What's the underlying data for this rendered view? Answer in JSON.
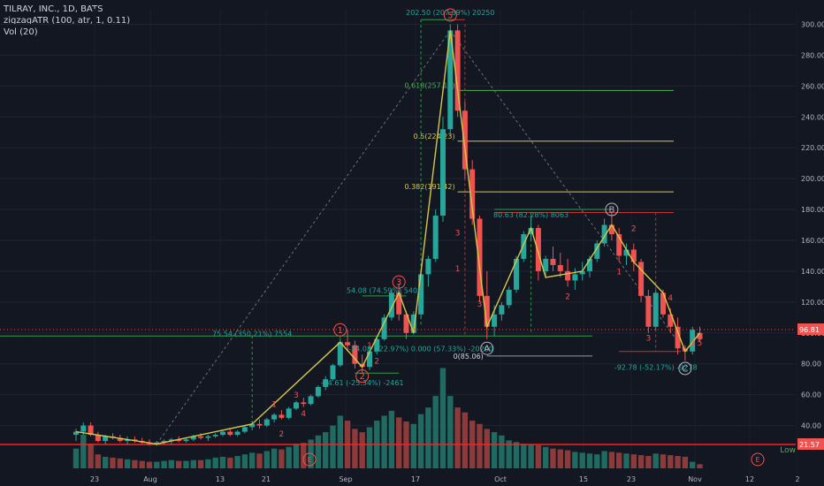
{
  "legend": {
    "symbol_line": "TILRAY, INC., 1D, BATS",
    "indicator_line": "zigzagATR (100, atr, 1, 0.11)",
    "volume_line": "Vol (20)"
  },
  "chart_data": {
    "type": "candlestick",
    "colors": {
      "up": "#26a69a",
      "down": "#ef5350",
      "zigzag": "#d4c84a",
      "fib": "#d4c84a",
      "fib_green": "#4caf50",
      "guide": "#26a69a",
      "red_line": "#ff1e1e",
      "bg": "#131722",
      "text": "#b2b5be"
    },
    "y_axis": {
      "min": 18,
      "max": 310,
      "ticks": [
        80,
        100,
        120,
        140,
        160,
        180,
        200,
        220,
        240,
        260,
        280,
        300
      ],
      "tick_labels": [
        "80.00",
        "100.00",
        "120.00",
        "140.00",
        "160.00",
        "180.00",
        "200.00",
        "220.00",
        "240.00",
        "260.00",
        "280.00",
        "300.00"
      ]
    },
    "lower_ticks": [
      40,
      60
    ],
    "lower_tick_labels": [
      "40.00",
      "60.00"
    ],
    "x_axis": {
      "labels": [
        "23",
        "Aug",
        "13",
        "21",
        "Sep",
        "17",
        "Oct",
        "15",
        "23",
        "Nov",
        "12",
        "2"
      ]
    },
    "candles": [
      [
        34,
        38,
        30,
        36
      ],
      [
        36,
        42,
        34,
        40
      ],
      [
        40,
        42,
        33,
        34
      ],
      [
        34,
        36,
        29,
        30
      ],
      [
        30,
        34,
        28,
        33
      ],
      [
        33,
        35,
        31,
        32
      ],
      [
        32,
        34,
        29,
        30
      ],
      [
        30,
        33,
        28,
        31
      ],
      [
        31,
        33,
        29,
        30
      ],
      [
        30,
        32,
        28,
        29
      ],
      [
        29,
        31,
        27,
        28
      ],
      [
        28,
        30,
        27,
        29
      ],
      [
        29,
        31,
        28,
        30
      ],
      [
        30,
        32,
        28,
        31
      ],
      [
        31,
        33,
        29,
        30
      ],
      [
        30,
        32,
        29,
        31
      ],
      [
        31,
        34,
        30,
        33
      ],
      [
        33,
        35,
        31,
        32
      ],
      [
        32,
        34,
        30,
        33
      ],
      [
        33,
        35,
        32,
        34
      ],
      [
        34,
        37,
        33,
        36
      ],
      [
        36,
        38,
        33,
        34
      ],
      [
        34,
        37,
        33,
        36
      ],
      [
        36,
        40,
        35,
        39
      ],
      [
        39,
        43,
        37,
        41
      ],
      [
        41,
        44,
        38,
        40
      ],
      [
        40,
        45,
        39,
        44
      ],
      [
        44,
        48,
        42,
        47
      ],
      [
        47,
        50,
        44,
        45
      ],
      [
        45,
        52,
        44,
        51
      ],
      [
        51,
        56,
        50,
        55
      ],
      [
        55,
        58,
        52,
        54
      ],
      [
        54,
        60,
        53,
        59
      ],
      [
        59,
        66,
        58,
        65
      ],
      [
        65,
        72,
        63,
        70
      ],
      [
        70,
        80,
        69,
        79
      ],
      [
        79,
        96,
        78,
        94
      ],
      [
        94,
        102,
        88,
        92
      ],
      [
        92,
        95,
        77,
        80
      ],
      [
        80,
        86,
        74,
        78
      ],
      [
        78,
        90,
        76,
        88
      ],
      [
        88,
        98,
        86,
        96
      ],
      [
        96,
        112,
        95,
        110
      ],
      [
        110,
        128,
        108,
        126
      ],
      [
        126,
        132,
        108,
        112
      ],
      [
        112,
        114,
        96,
        100
      ],
      [
        100,
        114,
        99,
        112
      ],
      [
        112,
        140,
        110,
        138
      ],
      [
        138,
        150,
        130,
        148
      ],
      [
        148,
        180,
        146,
        176
      ],
      [
        176,
        240,
        172,
        232
      ],
      [
        232,
        300,
        228,
        296
      ],
      [
        296,
        300,
        240,
        244
      ],
      [
        244,
        250,
        200,
        206
      ],
      [
        206,
        212,
        170,
        174
      ],
      [
        174,
        176,
        120,
        124
      ],
      [
        124,
        140,
        96,
        104
      ],
      [
        104,
        118,
        98,
        112
      ],
      [
        112,
        120,
        108,
        118
      ],
      [
        118,
        130,
        116,
        128
      ],
      [
        128,
        150,
        126,
        148
      ],
      [
        148,
        166,
        146,
        164
      ],
      [
        164,
        176,
        160,
        168
      ],
      [
        168,
        170,
        134,
        140
      ],
      [
        140,
        150,
        136,
        148
      ],
      [
        148,
        156,
        140,
        144
      ],
      [
        144,
        152,
        136,
        140
      ],
      [
        140,
        148,
        130,
        134
      ],
      [
        134,
        142,
        128,
        138
      ],
      [
        138,
        146,
        134,
        140
      ],
      [
        140,
        150,
        136,
        148
      ],
      [
        148,
        160,
        146,
        158
      ],
      [
        158,
        174,
        156,
        170
      ],
      [
        170,
        178,
        160,
        164
      ],
      [
        164,
        168,
        146,
        150
      ],
      [
        150,
        158,
        144,
        154
      ],
      [
        154,
        158,
        140,
        146
      ],
      [
        146,
        148,
        120,
        124
      ],
      [
        124,
        128,
        100,
        104
      ],
      [
        104,
        128,
        102,
        126
      ],
      [
        126,
        128,
        110,
        112
      ],
      [
        112,
        116,
        100,
        104
      ],
      [
        104,
        110,
        86,
        90
      ],
      [
        90,
        92,
        82,
        88
      ],
      [
        88,
        104,
        86,
        102
      ],
      [
        100,
        104,
        94,
        96
      ]
    ],
    "volumes": [
      24,
      41,
      30,
      17,
      14,
      13,
      12,
      11,
      10,
      9,
      8,
      8,
      9,
      10,
      9,
      9,
      10,
      10,
      11,
      13,
      14,
      13,
      15,
      17,
      19,
      18,
      21,
      24,
      23,
      26,
      30,
      31,
      35,
      40,
      44,
      52,
      64,
      58,
      48,
      44,
      50,
      58,
      64,
      70,
      62,
      57,
      54,
      66,
      74,
      88,
      122,
      88,
      74,
      68,
      58,
      54,
      48,
      44,
      40,
      34,
      32,
      30,
      29,
      28,
      26,
      24,
      23,
      22,
      20,
      19,
      18,
      17,
      21,
      20,
      19,
      18,
      17,
      16,
      15,
      18,
      17,
      16,
      15,
      14,
      8,
      5
    ],
    "zigzag": [
      [
        0,
        36
      ],
      [
        11,
        28
      ],
      [
        24,
        41
      ],
      [
        36,
        94
      ],
      [
        39,
        78
      ],
      [
        44,
        126
      ],
      [
        46,
        100
      ],
      [
        51,
        296
      ],
      [
        56,
        104
      ],
      [
        62,
        168
      ],
      [
        64,
        136
      ],
      [
        69,
        140
      ],
      [
        73,
        170
      ],
      [
        76,
        146
      ],
      [
        80,
        126
      ],
      [
        83,
        88
      ],
      [
        85,
        100
      ]
    ],
    "fib_levels": [
      {
        "label": "0.618(257.13)",
        "value": 257.13,
        "green": true
      },
      {
        "label": "0.5(224.23)",
        "value": 224.23,
        "green": false
      },
      {
        "label": "0.382(191.42)",
        "value": 191.42,
        "green": false
      }
    ],
    "fib_zero_label": "0(85.06)",
    "annotations": [
      {
        "text": "202.50 (207.69%) 20250",
        "x": 51,
        "y": 306,
        "color": "#26a69a"
      },
      {
        "text": "80.63 (82.28%) 8063",
        "x": 62,
        "y": 175,
        "color": "#26a69a"
      },
      {
        "text": "54.08 (74.59%) 5408",
        "x": 42,
        "y": 126,
        "color": "#26a69a"
      },
      {
        "text": "75.54 (350.21%) 7554",
        "x": 24,
        "y": 98,
        "color": "#26a69a"
      },
      {
        "text": "-24.61 (-25.34%) -2461",
        "x": 39,
        "y": 66,
        "color": "#26a69a"
      },
      {
        "text": "-92.78 (-52.17%) -9278",
        "x": 79,
        "y": 76,
        "color": "#26a69a"
      },
      {
        "text": "-24.08 (-22.97%) 0.000 (57.33%) -20200",
        "x": 47,
        "y": 88,
        "color": "#26a69a"
      }
    ],
    "wave_labels": [
      {
        "text": "5",
        "x": 51,
        "y": 306
      },
      {
        "text": "3",
        "x": 44,
        "y": 133
      },
      {
        "text": "1",
        "x": 36,
        "y": 102
      },
      {
        "text": "2",
        "x": 39,
        "y": 72
      },
      {
        "text": "A",
        "x": 56,
        "y": 90
      },
      {
        "text": "B",
        "x": 73,
        "y": 180
      },
      {
        "text": "C",
        "x": 83,
        "y": 77
      }
    ],
    "small_labels": [
      {
        "text": "1",
        "x": 27,
        "y": 52
      },
      {
        "text": "2",
        "x": 28,
        "y": 33
      },
      {
        "text": "3",
        "x": 30,
        "y": 58
      },
      {
        "text": "4",
        "x": 31,
        "y": 46
      },
      {
        "text": "2",
        "x": 53,
        "y": 238
      },
      {
        "text": "3",
        "x": 52,
        "y": 163
      },
      {
        "text": "1",
        "x": 52,
        "y": 140
      },
      {
        "text": "3",
        "x": 55,
        "y": 117
      },
      {
        "text": "2",
        "x": 67,
        "y": 122
      },
      {
        "text": "1",
        "x": 74,
        "y": 138
      },
      {
        "text": "2",
        "x": 76,
        "y": 166
      },
      {
        "text": "4",
        "x": 81,
        "y": 121
      },
      {
        "text": "3",
        "x": 78,
        "y": 95
      },
      {
        "text": "1",
        "x": 40,
        "y": 90
      },
      {
        "text": "2",
        "x": 41,
        "y": 80
      },
      {
        "text": "3",
        "x": 84,
        "y": 92
      },
      {
        "text": "5",
        "x": 85,
        "y": 92
      }
    ],
    "price_tag": "96.81",
    "volume_tag": "21.57",
    "low_label": "Low",
    "events": [
      "E",
      "E"
    ]
  }
}
